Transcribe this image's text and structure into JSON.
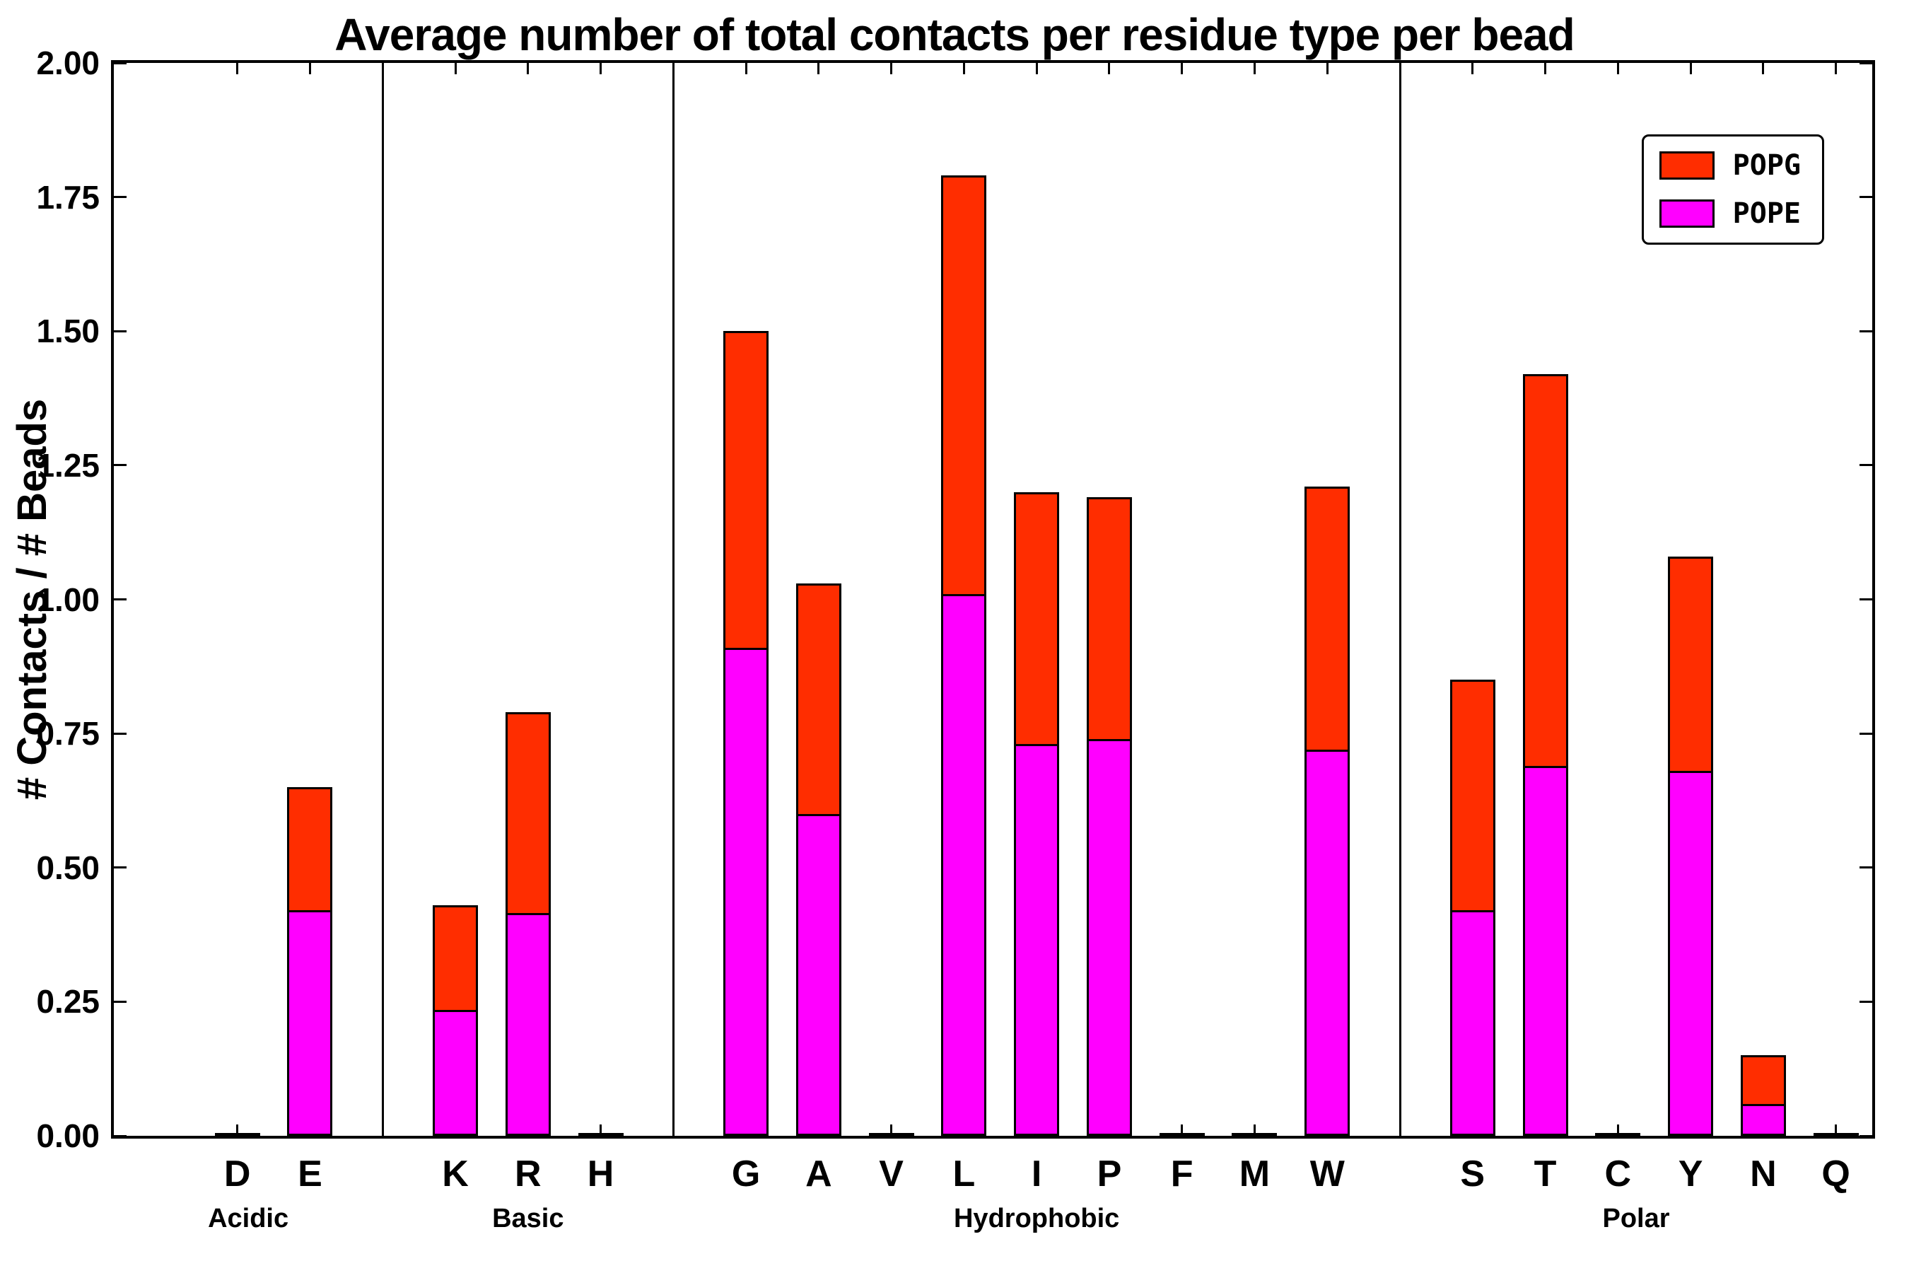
{
  "chart_data": {
    "type": "bar",
    "stacked": true,
    "title": "Average number of total contacts per residue type per bead",
    "ylabel": "# Contacts / # Beads",
    "xlabel": "",
    "ylim": [
      0,
      2.0
    ],
    "ytick_step": 0.25,
    "ytick_labels": [
      "0.00",
      "0.25",
      "0.50",
      "0.75",
      "1.00",
      "1.25",
      "1.50",
      "1.75",
      "2.00"
    ],
    "grid": false,
    "groups": [
      {
        "label": "Acidic",
        "letters": [
          "D",
          "E"
        ]
      },
      {
        "label": "Basic",
        "letters": [
          "K",
          "R",
          "H"
        ]
      },
      {
        "label": "Hydrophobic",
        "letters": [
          "G",
          "A",
          "V",
          "L",
          "I",
          "P",
          "F",
          "M",
          "W"
        ]
      },
      {
        "label": "Polar",
        "letters": [
          "S",
          "T",
          "C",
          "Y",
          "N",
          "Q"
        ]
      }
    ],
    "categories": [
      "D",
      "E",
      "K",
      "R",
      "H",
      "G",
      "A",
      "V",
      "L",
      "I",
      "P",
      "F",
      "M",
      "W",
      "S",
      "T",
      "C",
      "Y",
      "N",
      "Q"
    ],
    "series": [
      {
        "name": "POPE",
        "color": "#ff00ff",
        "values": [
          0,
          0.42,
          0.235,
          0.415,
          0,
          0.91,
          0.6,
          0,
          1.01,
          0.73,
          0.74,
          0,
          0,
          0.72,
          0.42,
          0.69,
          0,
          0.68,
          0.06,
          0
        ]
      },
      {
        "name": "POPG",
        "color": "#ff2d00",
        "values": [
          0,
          0.23,
          0.195,
          0.375,
          0,
          0.59,
          0.43,
          0,
          0.78,
          0.47,
          0.45,
          0,
          0,
          0.49,
          0.43,
          0.73,
          0,
          0.4,
          0.09,
          0
        ]
      }
    ],
    "totals": [
      0,
      0.65,
      0.43,
      0.79,
      0,
      1.5,
      1.03,
      0,
      1.79,
      1.2,
      1.19,
      0,
      0,
      1.21,
      0.85,
      1.42,
      0,
      1.08,
      0.15,
      0
    ],
    "legend": {
      "position": "upper right",
      "entries": [
        {
          "label": "POPG",
          "color": "#ff2d00"
        },
        {
          "label": "POPE",
          "color": "#ff00ff"
        }
      ]
    }
  }
}
